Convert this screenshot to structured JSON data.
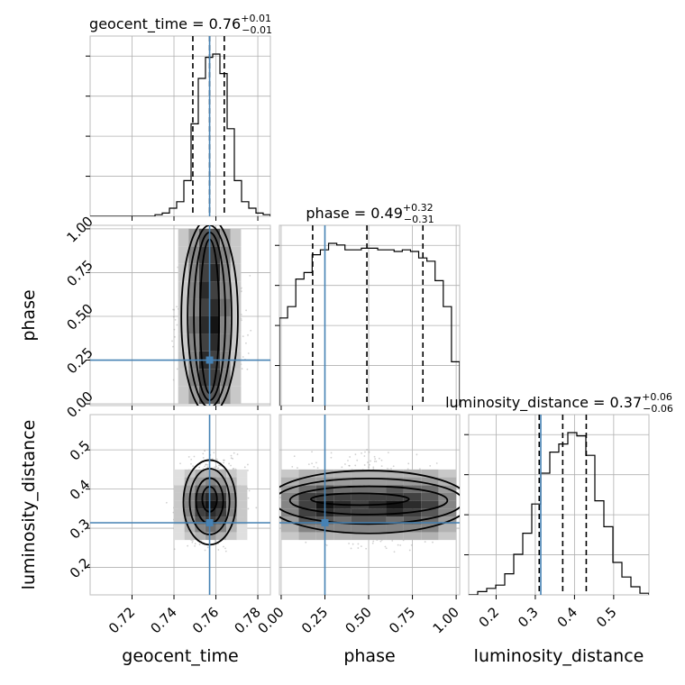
{
  "chart_data": {
    "type": "corner",
    "parameters": [
      {
        "name": "geocent_time",
        "axis_label": "geocent_time",
        "title_main": "geocent_time = 0.76",
        "title_plus": "+0.01",
        "title_minus": "−0.01",
        "range": [
          0.7,
          0.786
        ],
        "ticks": [
          0.72,
          0.74,
          0.76,
          0.78
        ],
        "tick_labels": [
          "0.72",
          "0.74",
          "0.76",
          "0.78"
        ],
        "truth": 0.757,
        "quantiles": [
          0.749,
          0.757,
          0.764
        ],
        "hist_edges": [
          0.7,
          0.786
        ],
        "hist": [
          0,
          0,
          0,
          0,
          0,
          0,
          0,
          0,
          0,
          0.01,
          0.02,
          0.05,
          0.09,
          0.22,
          0.57,
          0.85,
          0.98,
          1.0,
          0.88,
          0.54,
          0.22,
          0.09,
          0.05,
          0.02,
          0.01
        ]
      },
      {
        "name": "phase",
        "axis_label": "phase",
        "title_main": "phase = 0.49",
        "title_plus": "+0.32",
        "title_minus": "−0.31",
        "range": [
          -0.01,
          1.02
        ],
        "ticks": [
          0.0,
          0.25,
          0.5,
          0.75,
          1.0
        ],
        "tick_labels": [
          "0.00",
          "0.25",
          "0.50",
          "0.75",
          "1.00"
        ],
        "truth": 0.25,
        "quantiles": [
          0.18,
          0.49,
          0.81
        ],
        "hist_edges": [
          -0.01,
          1.02
        ],
        "hist": [
          0.54,
          0.61,
          0.78,
          0.82,
          0.93,
          0.96,
          1.0,
          0.99,
          0.96,
          0.96,
          0.97,
          0.97,
          0.96,
          0.96,
          0.95,
          0.96,
          0.95,
          0.91,
          0.89,
          0.77,
          0.61,
          0.27
        ]
      },
      {
        "name": "luminosity_distance",
        "axis_label": "luminosity_distance",
        "title_main": "luminosity_distance = 0.37",
        "title_plus": "+0.06",
        "title_minus": "−0.06",
        "range": [
          0.13,
          0.59
        ],
        "ticks": [
          0.2,
          0.3,
          0.4,
          0.5
        ],
        "tick_labels": [
          "0.2",
          "0.3",
          "0.4",
          "0.5"
        ],
        "truth": 0.314,
        "quantiles": [
          0.31,
          0.37,
          0.43
        ],
        "hist_edges": [
          0.13,
          0.59
        ],
        "hist": [
          0,
          0.02,
          0.04,
          0.06,
          0.13,
          0.25,
          0.38,
          0.56,
          0.75,
          0.88,
          0.93,
          1.0,
          0.98,
          0.86,
          0.58,
          0.42,
          0.2,
          0.11,
          0.05,
          0.01
        ]
      }
    ],
    "pairs": [
      {
        "x": "geocent_time",
        "y": "phase",
        "density": {
          "x_range": [
            0.742,
            0.772
          ],
          "y_range": [
            0.0,
            1.0
          ],
          "cols": 6,
          "rows": 10,
          "cells": [
            [
              0.2,
              0.4,
              0.7,
              0.7,
              0.4,
              0.2
            ],
            [
              0.2,
              0.5,
              0.8,
              0.8,
              0.5,
              0.2
            ],
            [
              0.2,
              0.5,
              0.9,
              0.8,
              0.5,
              0.2
            ],
            [
              0.2,
              0.5,
              0.8,
              0.9,
              0.5,
              0.2
            ],
            [
              0.2,
              0.6,
              0.9,
              1.0,
              0.5,
              0.2
            ],
            [
              0.2,
              0.5,
              0.8,
              0.9,
              0.6,
              0.2
            ],
            [
              0.2,
              0.5,
              0.9,
              0.8,
              0.5,
              0.2
            ],
            [
              0.2,
              0.5,
              0.8,
              0.9,
              0.5,
              0.2
            ],
            [
              0.2,
              0.5,
              0.8,
              0.8,
              0.5,
              0.2
            ],
            [
              0.2,
              0.4,
              0.7,
              0.7,
              0.4,
              0.2
            ]
          ]
        },
        "contours": [
          {
            "cx": 0.757,
            "cy": 0.5,
            "rx": 0.0045,
            "ry": 0.44
          },
          {
            "cx": 0.757,
            "cy": 0.5,
            "rx": 0.0075,
            "ry": 0.48
          },
          {
            "cx": 0.757,
            "cy": 0.5,
            "rx": 0.0105,
            "ry": 0.52
          },
          {
            "cx": 0.757,
            "cy": 0.5,
            "rx": 0.0135,
            "ry": 0.56
          }
        ],
        "scatter_box": [
          0.735,
          0.78,
          -0.05,
          1.05
        ]
      },
      {
        "x": "geocent_time",
        "y": "luminosity_distance",
        "density": {
          "x_range": [
            0.74,
            0.775
          ],
          "y_range": [
            0.27,
            0.45
          ],
          "cols": 7,
          "rows": 9,
          "cells": [
            [
              0.1,
              0.2,
              0.3,
              0.4,
              0.3,
              0.2,
              0.1
            ],
            [
              0.1,
              0.3,
              0.5,
              0.6,
              0.5,
              0.3,
              0.1
            ],
            [
              0.2,
              0.4,
              0.7,
              0.8,
              0.7,
              0.4,
              0.2
            ],
            [
              0.2,
              0.5,
              0.8,
              0.9,
              0.8,
              0.5,
              0.2
            ],
            [
              0.2,
              0.5,
              0.9,
              1.0,
              0.9,
              0.5,
              0.2
            ],
            [
              0.2,
              0.5,
              0.8,
              0.9,
              0.8,
              0.5,
              0.2
            ],
            [
              0.2,
              0.4,
              0.6,
              0.7,
              0.6,
              0.4,
              0.2
            ],
            [
              0.1,
              0.3,
              0.4,
              0.5,
              0.4,
              0.3,
              0.1
            ],
            [
              0.1,
              0.2,
              0.3,
              0.3,
              0.3,
              0.2,
              0.1
            ]
          ]
        },
        "contours": [
          {
            "cx": 0.757,
            "cy": 0.374,
            "rx": 0.0035,
            "ry": 0.032
          },
          {
            "cx": 0.757,
            "cy": 0.37,
            "rx": 0.0065,
            "ry": 0.058
          },
          {
            "cx": 0.757,
            "cy": 0.368,
            "rx": 0.0095,
            "ry": 0.084
          },
          {
            "cx": 0.757,
            "cy": 0.366,
            "rx": 0.0125,
            "ry": 0.108
          }
        ],
        "scatter_box": [
          0.735,
          0.78,
          0.22,
          0.52
        ]
      },
      {
        "x": "phase",
        "y": "luminosity_distance",
        "density": {
          "x_range": [
            0.0,
            1.0
          ],
          "y_range": [
            0.27,
            0.45
          ],
          "cols": 10,
          "rows": 9,
          "cells": [
            [
              0.2,
              0.3,
              0.3,
              0.3,
              0.3,
              0.3,
              0.3,
              0.3,
              0.3,
              0.2
            ],
            [
              0.3,
              0.5,
              0.5,
              0.5,
              0.5,
              0.5,
              0.5,
              0.5,
              0.5,
              0.3
            ],
            [
              0.4,
              0.7,
              0.7,
              0.6,
              0.7,
              0.7,
              0.6,
              0.7,
              0.6,
              0.4
            ],
            [
              0.5,
              0.8,
              0.9,
              0.8,
              0.8,
              0.8,
              0.9,
              0.8,
              0.7,
              0.5
            ],
            [
              0.5,
              0.8,
              1.0,
              0.9,
              0.8,
              0.9,
              1.0,
              0.9,
              0.8,
              0.5
            ],
            [
              0.5,
              0.8,
              0.8,
              0.8,
              0.8,
              0.8,
              0.8,
              0.8,
              0.7,
              0.5
            ],
            [
              0.4,
              0.6,
              0.7,
              0.6,
              0.6,
              0.6,
              0.7,
              0.6,
              0.6,
              0.4
            ],
            [
              0.3,
              0.4,
              0.4,
              0.4,
              0.4,
              0.4,
              0.4,
              0.4,
              0.4,
              0.3
            ],
            [
              0.2,
              0.3,
              0.3,
              0.3,
              0.3,
              0.3,
              0.3,
              0.3,
              0.3,
              0.2
            ]
          ]
        },
        "contours": [
          {
            "cx": 0.45,
            "cy": 0.374,
            "rx": 0.28,
            "ry": 0.015
          },
          {
            "cx": 0.5,
            "cy": 0.371,
            "rx": 0.45,
            "ry": 0.036
          },
          {
            "cx": 0.5,
            "cy": 0.369,
            "rx": 0.54,
            "ry": 0.058
          },
          {
            "cx": 0.5,
            "cy": 0.367,
            "rx": 0.58,
            "ry": 0.08
          }
        ],
        "scatter_box": [
          -0.05,
          1.05,
          0.22,
          0.52
        ]
      }
    ]
  }
}
